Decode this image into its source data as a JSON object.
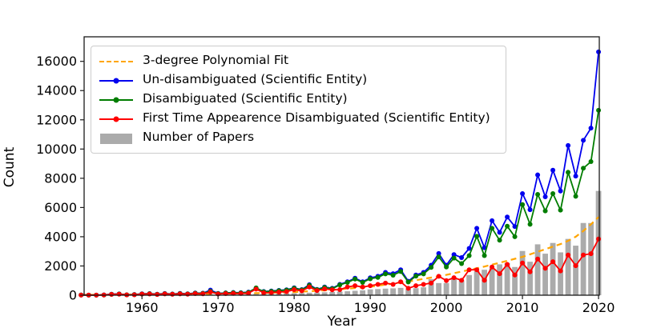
{
  "chart_data": {
    "type": "line",
    "title": "",
    "xlabel": "Year",
    "ylabel": "Count",
    "xlim": [
      1952.4,
      2020.1
    ],
    "ylim": [
      0,
      17680
    ],
    "x_ticks": [
      1960,
      1970,
      1980,
      1990,
      2000,
      2010,
      2020
    ],
    "y_ticks": [
      0,
      2000,
      4000,
      6000,
      8000,
      10000,
      12000,
      14000,
      16000
    ],
    "grid": false,
    "legend_position": "upper left",
    "colors": {
      "fit": "#FFA500",
      "un_disambiguated": "#0000EE",
      "disambiguated": "#007D00",
      "first_time": "#FF0000",
      "papers": "#ABABAB",
      "axis": "#1a1a1a"
    },
    "years": [
      1952,
      1953,
      1954,
      1955,
      1956,
      1957,
      1958,
      1959,
      1960,
      1961,
      1962,
      1963,
      1964,
      1965,
      1966,
      1967,
      1968,
      1969,
      1970,
      1971,
      1972,
      1973,
      1974,
      1975,
      1976,
      1977,
      1978,
      1979,
      1980,
      1981,
      1982,
      1983,
      1984,
      1985,
      1986,
      1987,
      1988,
      1989,
      1990,
      1991,
      1992,
      1993,
      1994,
      1995,
      1996,
      1997,
      1998,
      1999,
      2000,
      2001,
      2002,
      2003,
      2004,
      2005,
      2006,
      2007,
      2008,
      2009,
      2010,
      2011,
      2012,
      2013,
      2014,
      2015,
      2016,
      2017,
      2018,
      2019,
      2020
    ],
    "series": [
      {
        "name": "3-degree Polynomial Fit",
        "type": "line",
        "style": "dashed",
        "marker": "none",
        "color": "#FFA500",
        "values": [
          25,
          27,
          30,
          32,
          35,
          37,
          40,
          42,
          45,
          48,
          51,
          54,
          57,
          60,
          66,
          72,
          78,
          84,
          90,
          100,
          110,
          120,
          130,
          140,
          155,
          170,
          185,
          200,
          215,
          244,
          273,
          302,
          331,
          360,
          404,
          448,
          492,
          536,
          580,
          650,
          720,
          790,
          860,
          930,
          1022,
          1114,
          1206,
          1298,
          1390,
          1504,
          1618,
          1732,
          1846,
          1960,
          2092,
          2224,
          2356,
          2488,
          2620,
          2796,
          2972,
          3148,
          3324,
          3500,
          3720,
          4000,
          4400,
          4850,
          5350
        ]
      },
      {
        "name": "Un-disambiguated (Scientific Entity)",
        "type": "line",
        "style": "solid",
        "marker": "circle",
        "color": "#0000EE",
        "values": [
          15,
          8,
          10,
          20,
          70,
          90,
          30,
          45,
          95,
          110,
          70,
          115,
          80,
          120,
          95,
          150,
          135,
          350,
          120,
          160,
          185,
          170,
          210,
          480,
          250,
          285,
          330,
          370,
          505,
          380,
          720,
          400,
          560,
          470,
          740,
          920,
          1160,
          920,
          1190,
          1290,
          1560,
          1470,
          1740,
          950,
          1380,
          1560,
          2050,
          2850,
          2050,
          2780,
          2570,
          3200,
          4580,
          3250,
          5100,
          4300,
          5350,
          4700,
          6950,
          5850,
          8230,
          6730,
          8550,
          7130,
          10240,
          8150,
          10600,
          11430,
          16650
        ]
      },
      {
        "name": "Disambiguated (Scientific Entity)",
        "type": "line",
        "style": "solid",
        "marker": "circle",
        "color": "#007D00",
        "values": [
          12,
          6,
          8,
          16,
          60,
          80,
          25,
          40,
          85,
          100,
          62,
          105,
          72,
          110,
          88,
          138,
          125,
          270,
          112,
          150,
          172,
          158,
          195,
          500,
          235,
          265,
          308,
          348,
          478,
          360,
          675,
          380,
          532,
          445,
          705,
          875,
          1105,
          875,
          1125,
          1215,
          1460,
          1370,
          1620,
          905,
          1305,
          1460,
          1900,
          2620,
          1930,
          2540,
          2160,
          2710,
          4030,
          2710,
          4580,
          3760,
          4720,
          4000,
          6200,
          4850,
          6900,
          5770,
          6950,
          5820,
          8410,
          6770,
          8690,
          9140,
          12650
        ]
      },
      {
        "name": "First Time Appearence Disambiguated (Scientific Entity)",
        "type": "line",
        "style": "solid",
        "marker": "circle",
        "color": "#FF0000",
        "values": [
          10,
          5,
          6,
          12,
          55,
          70,
          20,
          30,
          75,
          85,
          50,
          90,
          60,
          90,
          70,
          110,
          95,
          220,
          85,
          110,
          125,
          115,
          140,
          420,
          165,
          185,
          215,
          245,
          380,
          300,
          560,
          320,
          430,
          370,
          380,
          560,
          650,
          560,
          650,
          740,
          830,
          740,
          920,
          470,
          650,
          740,
          830,
          1290,
          1000,
          1200,
          1020,
          1740,
          1740,
          1020,
          1930,
          1470,
          2110,
          1380,
          2200,
          1600,
          2480,
          1840,
          2290,
          1660,
          2750,
          2020,
          2750,
          2840,
          3845
        ]
      },
      {
        "name": "Number of Papers",
        "type": "bar",
        "color": "#ABABAB",
        "values": [
          0,
          0,
          0,
          5,
          10,
          12,
          8,
          10,
          15,
          18,
          15,
          20,
          18,
          25,
          25,
          30,
          35,
          45,
          45,
          55,
          60,
          65,
          75,
          85,
          95,
          105,
          115,
          125,
          140,
          150,
          170,
          180,
          200,
          220,
          245,
          270,
          300,
          330,
          400,
          420,
          450,
          470,
          500,
          420,
          480,
          540,
          1100,
          830,
          830,
          1100,
          1015,
          1380,
          1650,
          1740,
          1835,
          2110,
          2200,
          1930,
          3025,
          2290,
          3480,
          2840,
          3575,
          2930,
          3850,
          3390,
          4940,
          4940,
          7135
        ]
      }
    ]
  }
}
